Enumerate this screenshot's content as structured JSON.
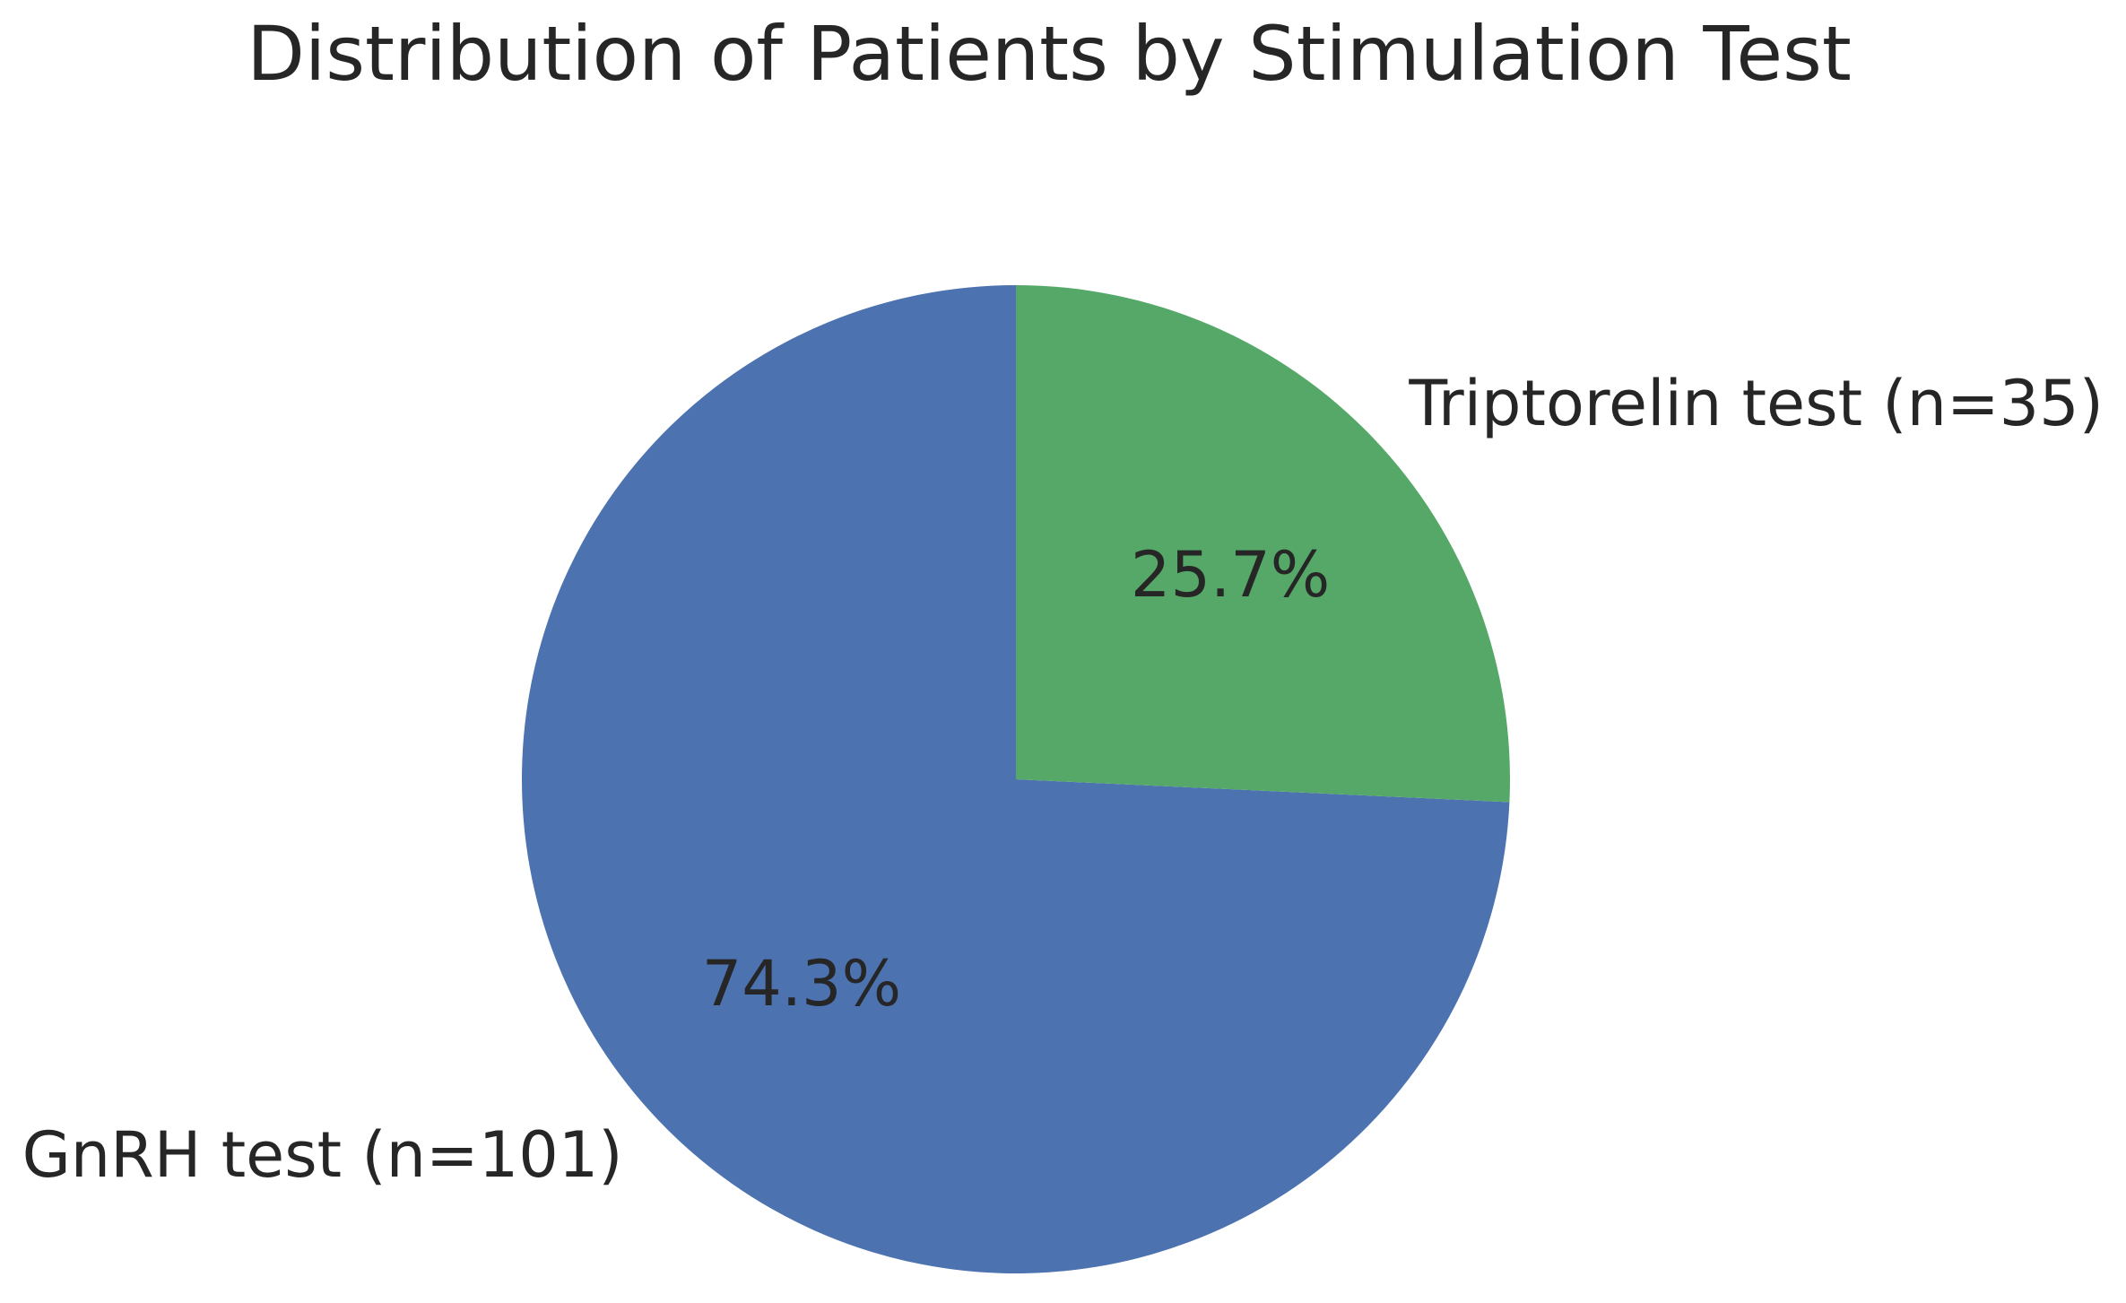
{
  "chart_data": {
    "type": "pie",
    "title": "Distribution of Patients by Stimulation Test",
    "slices": [
      {
        "label": "GnRH test (n=101)",
        "value": 101,
        "pct": 74.3,
        "pct_label": "74.3%",
        "color": "#4c72b0"
      },
      {
        "label": "Triptorelin test (n=35)",
        "value": 35,
        "pct": 25.7,
        "pct_label": "25.7%",
        "color": "#55a868"
      }
    ],
    "start_angle": 90,
    "counterclock": true,
    "legend": "none",
    "text_color": "#262626",
    "background": "#ffffff"
  }
}
